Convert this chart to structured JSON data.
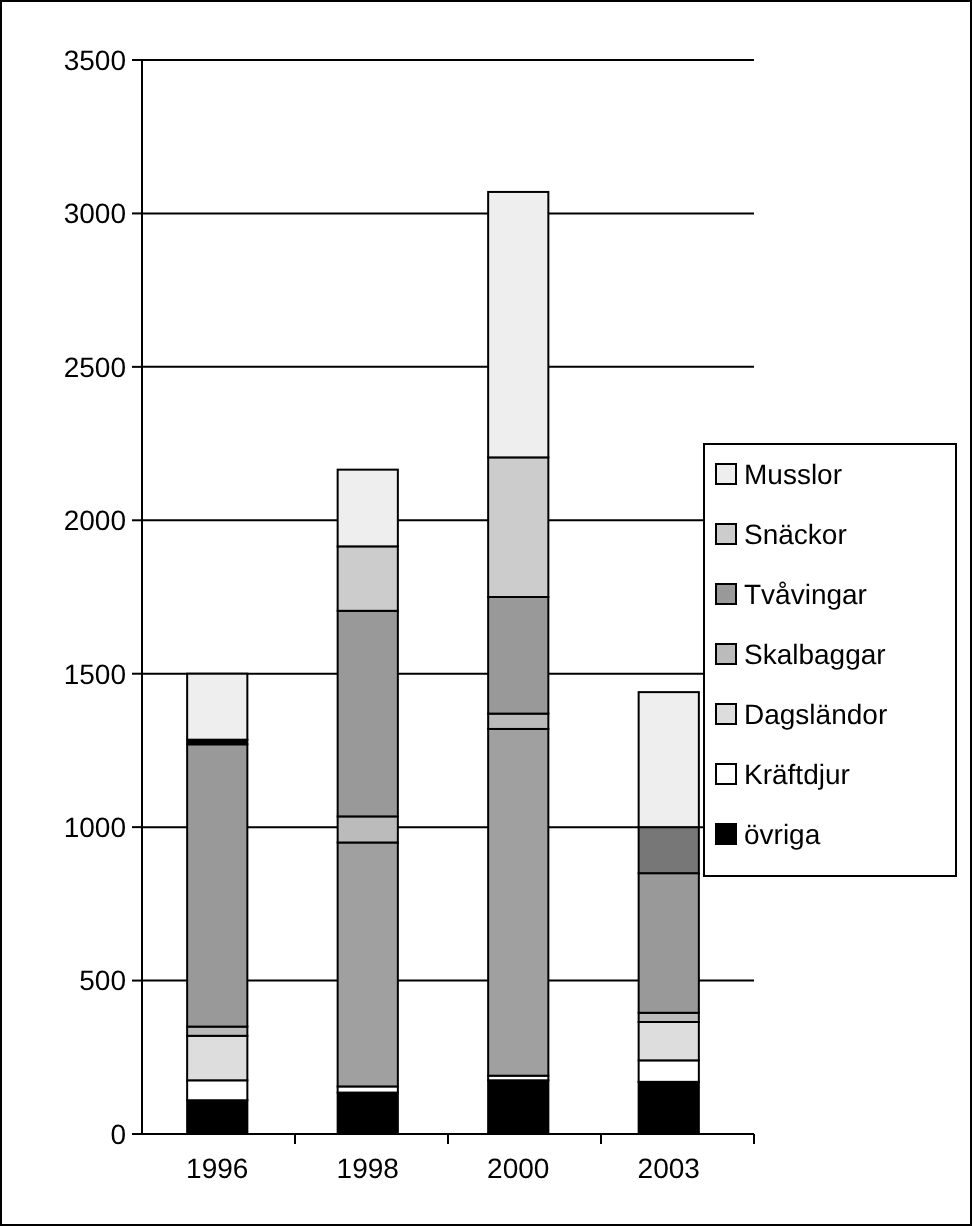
{
  "chart_data": {
    "type": "bar",
    "stacked": true,
    "categories": [
      "1996",
      "1998",
      "2000",
      "2003"
    ],
    "series": [
      {
        "name": "övriga",
        "color": "#000000",
        "values": [
          110,
          135,
          175,
          170
        ]
      },
      {
        "name": "Kräftdjur",
        "color": "#ffffff",
        "values": [
          65,
          20,
          15,
          70
        ]
      },
      {
        "name": "Dagsländor",
        "color": "#dddddd",
        "colors": [
          "#dddddd",
          "#a0a0a0",
          "#a0a0a0",
          "#dddddd"
        ],
        "values": [
          145,
          795,
          1130,
          125
        ]
      },
      {
        "name": "Skalbaggar",
        "color": "#bbbbbb",
        "values": [
          30,
          85,
          50,
          30
        ]
      },
      {
        "name": "Tvåvingar",
        "color": "#999999",
        "values": [
          920,
          670,
          380,
          455
        ]
      },
      {
        "name": "Snäckor",
        "color": "#cccccc",
        "colors": [
          "#000000",
          "#cccccc",
          "#cccccc",
          "#777777"
        ],
        "values": [
          15,
          210,
          455,
          150
        ]
      },
      {
        "name": "Musslor",
        "color": "#eeeeee",
        "values": [
          215,
          250,
          865,
          440
        ]
      }
    ],
    "ylim": [
      0,
      3500
    ],
    "yticks": [
      0,
      500,
      1000,
      1500,
      2000,
      2500,
      3000,
      3500
    ],
    "grid": "y",
    "legend": "right"
  }
}
